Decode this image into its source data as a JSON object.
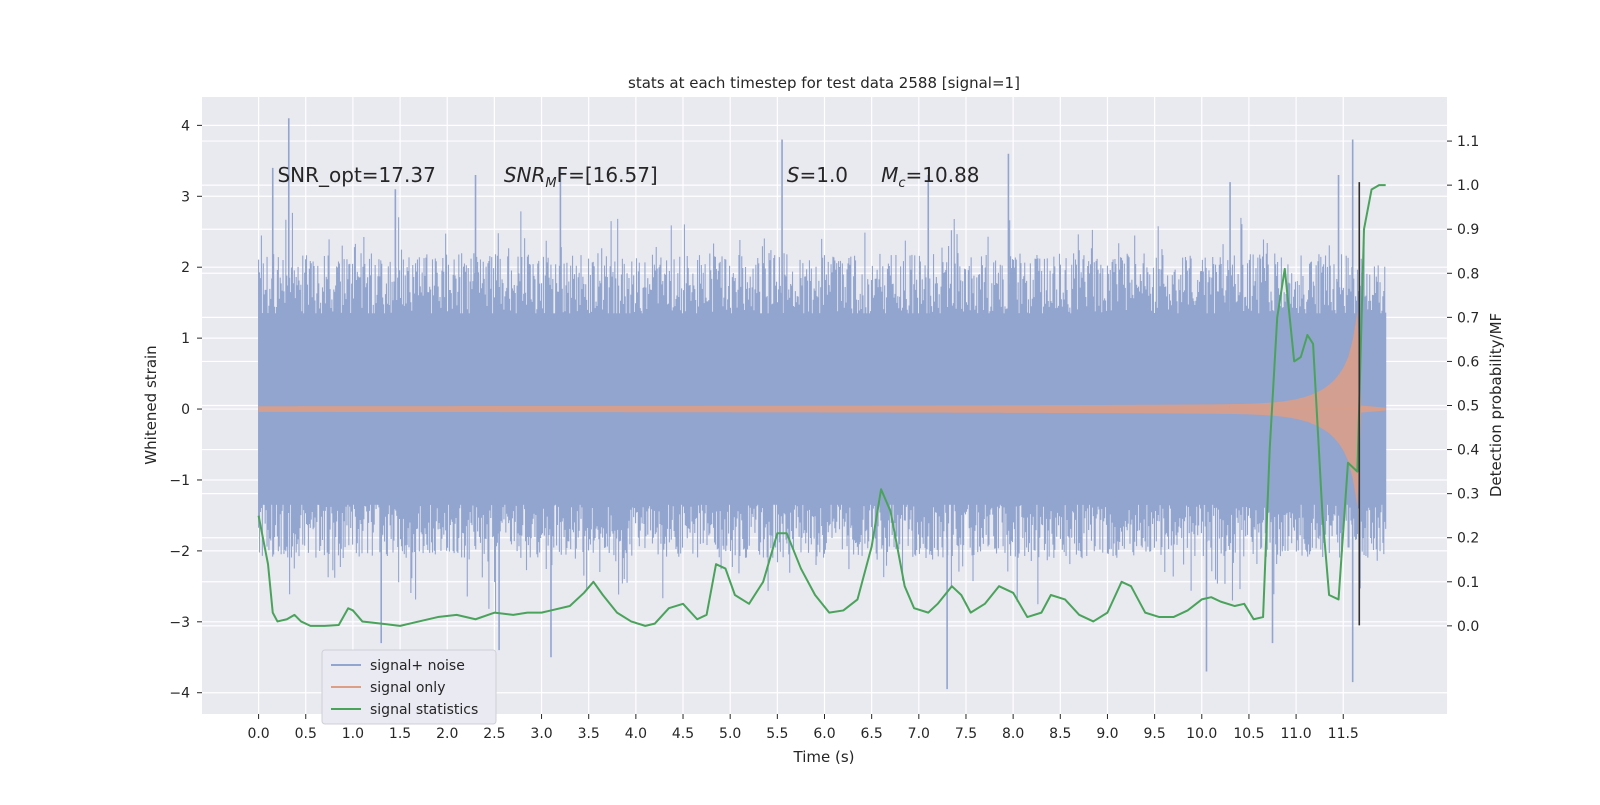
{
  "chart_data": {
    "type": "line",
    "title": "stats at each timestep for test data 2588 [signal=1]",
    "xlabel": "Time (s)",
    "ylabel": "Whitened strain",
    "y2label": "Detection probability/MF",
    "xlim": [
      -0.6,
      12.6
    ],
    "ylim": [
      -4.3,
      4.4
    ],
    "y2lim": [
      -0.2,
      1.2
    ],
    "x_ticks": [
      "0.0",
      "0.5",
      "1.0",
      "1.5",
      "2.0",
      "2.5",
      "3.0",
      "3.5",
      "4.0",
      "4.5",
      "5.0",
      "5.5",
      "6.0",
      "6.5",
      "7.0",
      "7.5",
      "8.0",
      "8.5",
      "9.0",
      "9.5",
      "10.0",
      "10.5",
      "11.0",
      "11.5"
    ],
    "y_ticks": [
      "4",
      "3",
      "2",
      "1",
      "0",
      "−1",
      "−2",
      "−3",
      "−4"
    ],
    "y2_ticks": [
      "1.1",
      "1.0",
      "0.9",
      "0.8",
      "0.7",
      "0.6",
      "0.5",
      "0.4",
      "0.3",
      "0.2",
      "0.1",
      "0.0"
    ],
    "grid": true,
    "legend_position": "lower-left",
    "annotations": [
      {
        "id": "snr-opt",
        "text": "SNR_opt=17.37",
        "x": 0.2,
        "y": 3.3
      },
      {
        "id": "snr-mf",
        "base": "SNR",
        "sub": "M",
        "rest": "F=[16.57]",
        "x": 2.6,
        "y": 3.3
      },
      {
        "id": "s-value",
        "italic": "S",
        "rest": "=1.0",
        "x": 5.6,
        "y": 3.3
      },
      {
        "id": "mc-value",
        "italic": "M",
        "sub": "c",
        "rest": "=10.88",
        "x": 6.6,
        "y": 3.3
      }
    ],
    "series": [
      {
        "name": "signal+ noise",
        "color": "#92a5cf",
        "x_range": [
          0.0,
          11.95
        ],
        "envelope": {
          "core_abs": 1.35,
          "typical_max": 2.7,
          "typical_min": -2.6
        },
        "peaks": [
          {
            "x": 0.15,
            "y": 3.4
          },
          {
            "x": 0.32,
            "y": 4.1
          },
          {
            "x": 1.45,
            "y": 3.1
          },
          {
            "x": 2.3,
            "y": 3.3
          },
          {
            "x": 3.2,
            "y": 3.4
          },
          {
            "x": 5.55,
            "y": 3.8
          },
          {
            "x": 7.1,
            "y": 3.3
          },
          {
            "x": 7.95,
            "y": 3.6
          },
          {
            "x": 10.3,
            "y": 3.2
          },
          {
            "x": 11.45,
            "y": 3.3
          },
          {
            "x": 11.6,
            "y": 3.8
          },
          {
            "x": 1.3,
            "y": -3.3
          },
          {
            "x": 2.55,
            "y": -3.4
          },
          {
            "x": 3.1,
            "y": -3.5
          },
          {
            "x": 7.3,
            "y": -3.95
          },
          {
            "x": 10.05,
            "y": -3.7
          },
          {
            "x": 10.75,
            "y": -3.3
          },
          {
            "x": 11.6,
            "y": -3.85
          }
        ]
      },
      {
        "name": "signal only",
        "color": "#dd9e86",
        "x_range": [
          0.0,
          11.95
        ],
        "t_merger": 11.65,
        "amplitude_at_start": 0.04,
        "amplitude_near_merger": 1.6
      },
      {
        "name": "signal statistics",
        "color": "#4aa35a",
        "axis": "right",
        "points": [
          [
            0.0,
            0.25
          ],
          [
            0.1,
            0.14
          ],
          [
            0.15,
            0.03
          ],
          [
            0.2,
            0.01
          ],
          [
            0.3,
            0.015
          ],
          [
            0.38,
            0.025
          ],
          [
            0.45,
            0.01
          ],
          [
            0.55,
            0.0
          ],
          [
            0.7,
            0.0
          ],
          [
            0.85,
            0.002
          ],
          [
            0.95,
            0.04
          ],
          [
            1.0,
            0.035
          ],
          [
            1.1,
            0.01
          ],
          [
            1.3,
            0.005
          ],
          [
            1.5,
            0.0
          ],
          [
            1.7,
            0.01
          ],
          [
            1.9,
            0.02
          ],
          [
            2.1,
            0.025
          ],
          [
            2.3,
            0.015
          ],
          [
            2.5,
            0.03
          ],
          [
            2.7,
            0.025
          ],
          [
            2.85,
            0.03
          ],
          [
            3.0,
            0.03
          ],
          [
            3.1,
            0.035
          ],
          [
            3.3,
            0.045
          ],
          [
            3.45,
            0.075
          ],
          [
            3.55,
            0.1
          ],
          [
            3.65,
            0.07
          ],
          [
            3.8,
            0.03
          ],
          [
            3.95,
            0.01
          ],
          [
            4.1,
            0.0
          ],
          [
            4.2,
            0.005
          ],
          [
            4.35,
            0.04
          ],
          [
            4.5,
            0.05
          ],
          [
            4.65,
            0.015
          ],
          [
            4.75,
            0.025
          ],
          [
            4.85,
            0.14
          ],
          [
            4.95,
            0.13
          ],
          [
            5.05,
            0.07
          ],
          [
            5.2,
            0.05
          ],
          [
            5.35,
            0.1
          ],
          [
            5.5,
            0.21
          ],
          [
            5.6,
            0.21
          ],
          [
            5.75,
            0.13
          ],
          [
            5.9,
            0.07
          ],
          [
            6.05,
            0.03
          ],
          [
            6.2,
            0.035
          ],
          [
            6.35,
            0.06
          ],
          [
            6.5,
            0.18
          ],
          [
            6.6,
            0.31
          ],
          [
            6.7,
            0.26
          ],
          [
            6.85,
            0.09
          ],
          [
            6.95,
            0.04
          ],
          [
            7.1,
            0.03
          ],
          [
            7.2,
            0.05
          ],
          [
            7.35,
            0.09
          ],
          [
            7.45,
            0.07
          ],
          [
            7.55,
            0.03
          ],
          [
            7.7,
            0.05
          ],
          [
            7.85,
            0.09
          ],
          [
            8.0,
            0.075
          ],
          [
            8.15,
            0.02
          ],
          [
            8.3,
            0.03
          ],
          [
            8.4,
            0.07
          ],
          [
            8.55,
            0.06
          ],
          [
            8.7,
            0.025
          ],
          [
            8.85,
            0.01
          ],
          [
            9.0,
            0.03
          ],
          [
            9.15,
            0.1
          ],
          [
            9.25,
            0.09
          ],
          [
            9.4,
            0.03
          ],
          [
            9.55,
            0.02
          ],
          [
            9.7,
            0.02
          ],
          [
            9.85,
            0.035
          ],
          [
            10.0,
            0.06
          ],
          [
            10.1,
            0.065
          ],
          [
            10.2,
            0.055
          ],
          [
            10.35,
            0.045
          ],
          [
            10.45,
            0.05
          ],
          [
            10.55,
            0.015
          ],
          [
            10.65,
            0.02
          ],
          [
            10.72,
            0.4
          ],
          [
            10.8,
            0.7
          ],
          [
            10.88,
            0.81
          ],
          [
            10.98,
            0.6
          ],
          [
            11.05,
            0.61
          ],
          [
            11.12,
            0.66
          ],
          [
            11.18,
            0.64
          ],
          [
            11.28,
            0.25
          ],
          [
            11.35,
            0.07
          ],
          [
            11.45,
            0.06
          ],
          [
            11.55,
            0.37
          ],
          [
            11.65,
            0.35
          ],
          [
            11.72,
            0.9
          ],
          [
            11.8,
            0.99
          ],
          [
            11.88,
            1.0
          ],
          [
            11.95,
            1.0
          ]
        ]
      }
    ],
    "vertical_marker": {
      "x": 11.67,
      "color": "#303030"
    }
  }
}
